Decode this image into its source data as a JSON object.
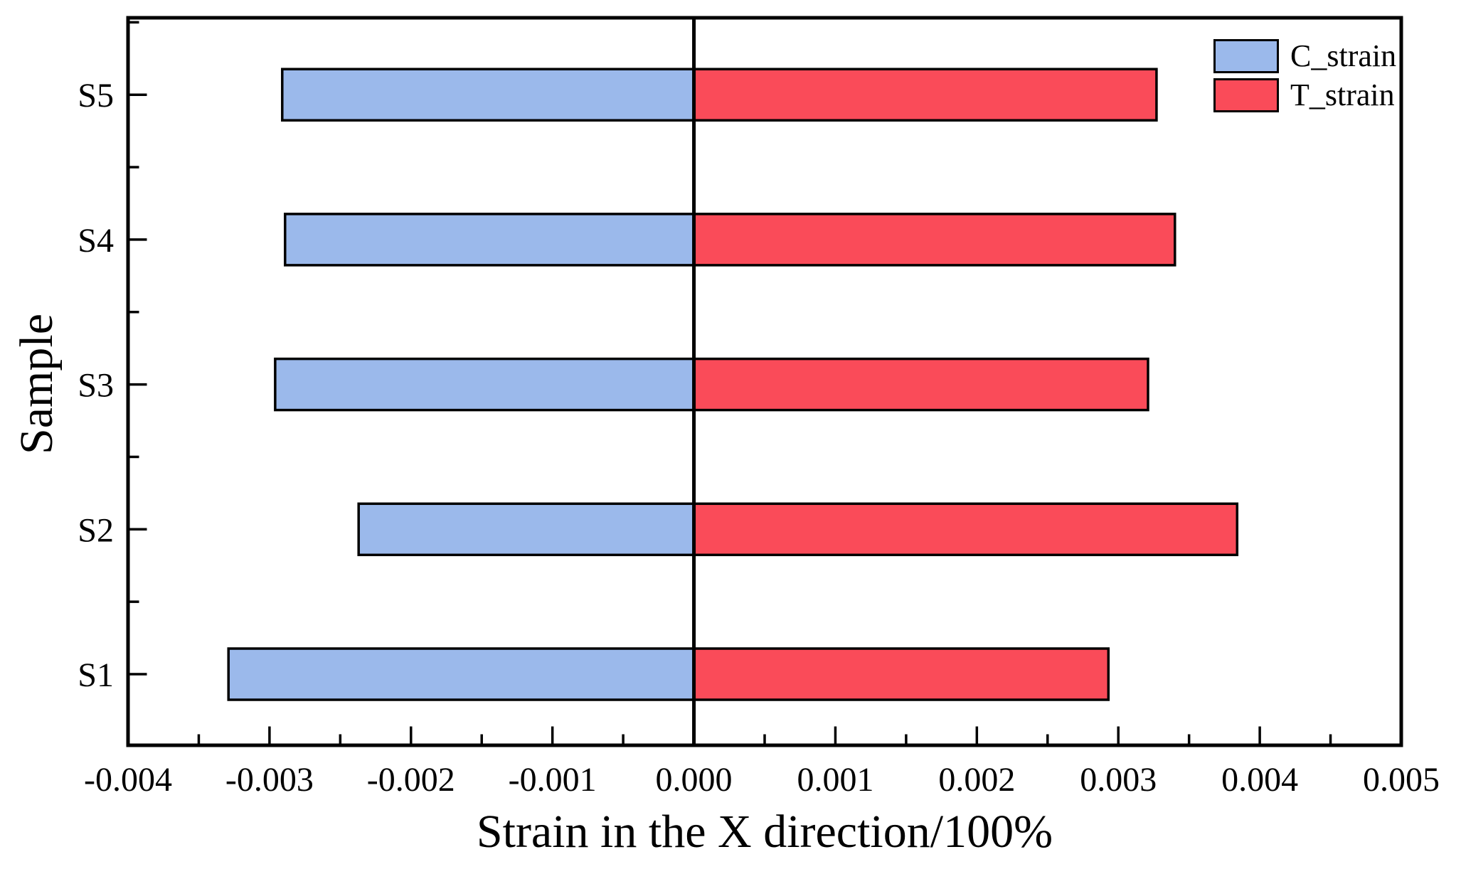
{
  "chart_data": {
    "type": "bar",
    "orientation": "horizontal",
    "title": "",
    "xlabel": "Strain in the X direction/100%",
    "ylabel": "Sample",
    "categories": [
      "S1",
      "S2",
      "S3",
      "S4",
      "S5"
    ],
    "series": [
      {
        "name": "C_strain",
        "color": "#9bb9eb",
        "values": [
          -0.00329,
          -0.00237,
          -0.00296,
          -0.00289,
          -0.00291
        ]
      },
      {
        "name": "T_strain",
        "color": "#fa4b59",
        "values": [
          0.00293,
          0.00384,
          0.00321,
          0.0034,
          0.00327
        ]
      }
    ],
    "xlim": [
      -0.004,
      0.005
    ],
    "x_major_step": 0.001,
    "x_minor_step": 0.0005,
    "x_tick_labels": [
      "-0.004",
      "-0.003",
      "-0.002",
      "-0.001",
      "0.000",
      "0.001",
      "0.002",
      "0.003",
      "0.004",
      "0.005"
    ],
    "grid": false,
    "zero_line": true,
    "legend_position": "top-right-inside",
    "bar_edge_color": "#000000",
    "axis_color": "#000000"
  }
}
